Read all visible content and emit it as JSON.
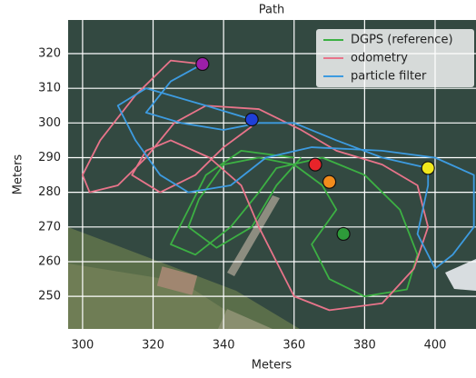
{
  "chart_data": {
    "type": "line",
    "title": "Path",
    "xlabel": "Meters",
    "ylabel": "Meters",
    "xlim": [
      295.9,
      411.6
    ],
    "ylim": [
      240.6,
      329.7
    ],
    "xticks": [
      300,
      320,
      340,
      360,
      380,
      400
    ],
    "yticks": [
      250,
      260,
      270,
      280,
      290,
      300,
      310,
      320
    ],
    "grid": true,
    "legend": "upper right",
    "series": [
      {
        "name": "DGPS (reference)",
        "color": "#3cb043",
        "x": [
          360,
          345,
          335,
          330,
          325,
          332,
          342,
          350,
          355,
          368,
          380,
          390,
          395,
          392,
          380,
          370,
          365,
          372,
          368,
          360,
          350,
          340,
          333,
          330,
          338,
          348,
          355,
          362
        ],
        "y": [
          290,
          292,
          285,
          275,
          265,
          262,
          270,
          280,
          287,
          290,
          285,
          275,
          262,
          252,
          250,
          255,
          265,
          275,
          282,
          288,
          290,
          288,
          278,
          270,
          264,
          270,
          282,
          290
        ]
      },
      {
        "name": "odometry",
        "color": "#e8748a",
        "x": [
          334,
          325,
          315,
          305,
          300,
          302,
          310,
          318,
          326,
          335,
          350,
          362,
          372,
          385,
          395,
          398,
          394,
          385,
          370,
          360,
          355,
          350,
          345,
          336,
          325,
          318,
          314,
          322,
          332,
          340,
          348
        ],
        "y": [
          317,
          318,
          308,
          295,
          285,
          280,
          282,
          290,
          300,
          305,
          304,
          298,
          292,
          288,
          282,
          270,
          258,
          248,
          246,
          250,
          260,
          270,
          282,
          290,
          295,
          292,
          285,
          280,
          285,
          293,
          299
        ]
      },
      {
        "name": "particle filter",
        "color": "#3d9be0",
        "x": [
          348,
          335,
          318,
          310,
          315,
          322,
          330,
          342,
          352,
          365,
          385,
          400,
          411,
          411,
          405,
          400,
          395,
          398,
          398,
          385,
          372,
          360,
          350,
          340,
          328,
          318,
          325,
          334
        ],
        "y": [
          301,
          305,
          310,
          305,
          295,
          285,
          280,
          282,
          290,
          293,
          292,
          290,
          285,
          270,
          262,
          258,
          268,
          282,
          287,
          290,
          295,
          300,
          300,
          298,
          300,
          303,
          312,
          317
        ]
      }
    ],
    "markers": {
      "x": [
        334,
        348,
        366,
        370,
        374,
        398
      ],
      "y": [
        317,
        301,
        288,
        283,
        268,
        287
      ],
      "colors": [
        "#9b1fa8",
        "#1f3fd8",
        "#e8242a",
        "#f28c1c",
        "#2e9b3a",
        "#f0e81c"
      ]
    }
  }
}
